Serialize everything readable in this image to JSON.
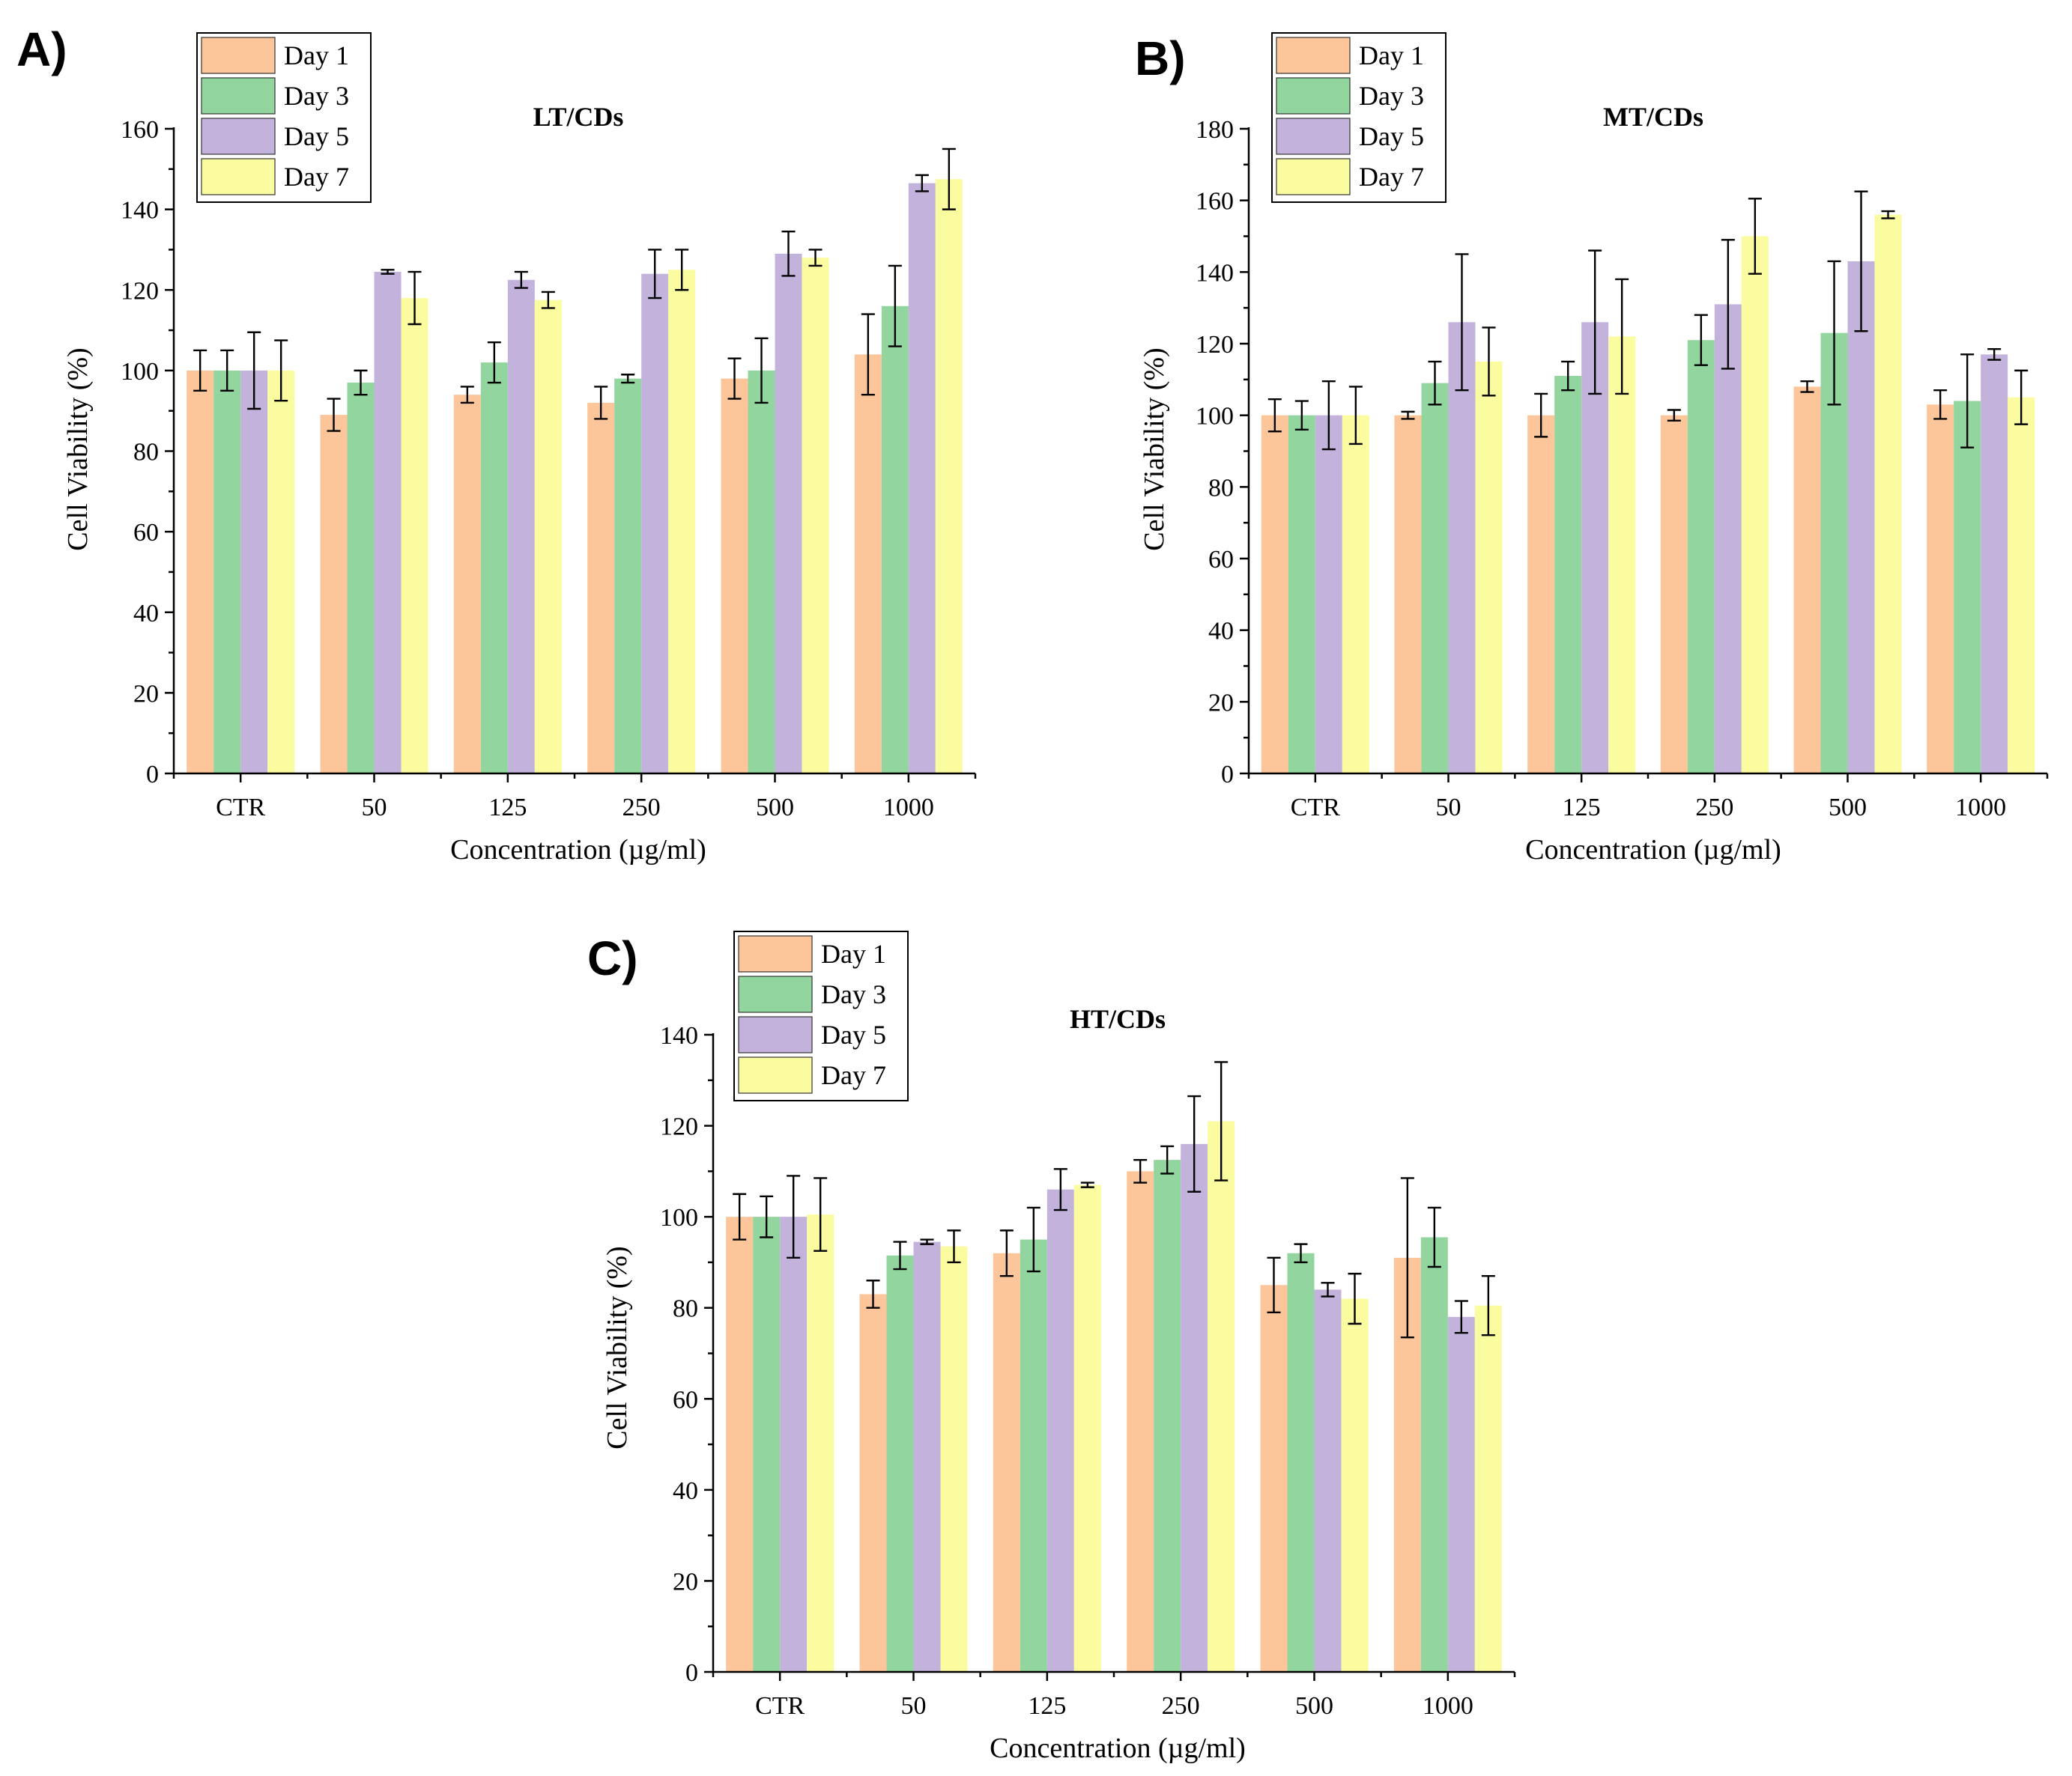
{
  "colors": {
    "Day 1": "#fcc69a",
    "Day 3": "#93d59e",
    "Day 5": "#c3b3dc",
    "Day 7": "#fbfba0"
  },
  "chart_data": [
    {
      "panel": "A)",
      "type": "bar",
      "title": "LT/CDs",
      "xlabel": "Concentration (µg/ml)",
      "ylabel": "Cell Viability (%)",
      "ylim": [
        0,
        160
      ],
      "yticks": [
        0,
        20,
        40,
        60,
        80,
        100,
        120,
        140,
        160
      ],
      "categories": [
        "CTR",
        "50",
        "125",
        "250",
        "500",
        "1000"
      ],
      "legend_position": "top-left",
      "series": [
        {
          "name": "Day 1",
          "values": [
            100,
            89,
            94,
            92,
            98,
            104
          ],
          "errors": [
            5,
            4,
            2,
            4,
            5,
            10
          ]
        },
        {
          "name": "Day 3",
          "values": [
            100,
            97,
            102,
            98,
            100,
            116
          ],
          "errors": [
            5,
            3,
            5,
            1,
            8,
            10
          ]
        },
        {
          "name": "Day 5",
          "values": [
            100,
            124.5,
            122.5,
            124,
            129,
            146.5
          ],
          "errors": [
            9.5,
            0.5,
            2,
            6,
            5.5,
            2
          ]
        },
        {
          "name": "Day 7",
          "values": [
            100,
            118,
            117.5,
            125,
            128,
            147.5
          ],
          "errors": [
            7.5,
            6.5,
            2,
            5,
            2,
            7.5
          ]
        }
      ]
    },
    {
      "panel": "B)",
      "type": "bar",
      "title": "MT/CDs",
      "xlabel": "Concentration (µg/ml)",
      "ylabel": "Cell Viability (%)",
      "ylim": [
        0,
        180
      ],
      "yticks": [
        0,
        20,
        40,
        60,
        80,
        100,
        120,
        140,
        160,
        180
      ],
      "categories": [
        "CTR",
        "50",
        "125",
        "250",
        "500",
        "1000"
      ],
      "legend_position": "top-left",
      "series": [
        {
          "name": "Day 1",
          "values": [
            100,
            100,
            100,
            100,
            108,
            103
          ],
          "errors": [
            4.5,
            1,
            6,
            1.5,
            1.5,
            4
          ]
        },
        {
          "name": "Day 3",
          "values": [
            100,
            109,
            111,
            121,
            123,
            104
          ],
          "errors": [
            4,
            6,
            4,
            7,
            20,
            13
          ]
        },
        {
          "name": "Day 5",
          "values": [
            100,
            126,
            126,
            131,
            143,
            117
          ],
          "errors": [
            9.5,
            19,
            20,
            18,
            19.5,
            1.5
          ]
        },
        {
          "name": "Day 7",
          "values": [
            100,
            115,
            122,
            150,
            156,
            105
          ],
          "errors": [
            8,
            9.5,
            16,
            10.5,
            1,
            7.5
          ]
        }
      ]
    },
    {
      "panel": "C)",
      "type": "bar",
      "title": "HT/CDs",
      "xlabel": "Concentration (µg/ml)",
      "ylabel": "Cell Viability (%)",
      "ylim": [
        0,
        140
      ],
      "yticks": [
        0,
        20,
        40,
        60,
        80,
        100,
        120,
        140
      ],
      "categories": [
        "CTR",
        "50",
        "125",
        "250",
        "500",
        "1000"
      ],
      "legend_position": "top-left",
      "series": [
        {
          "name": "Day 1",
          "values": [
            100,
            83,
            92,
            110,
            85,
            91
          ],
          "errors": [
            5,
            3,
            5,
            2.5,
            6,
            17.5
          ]
        },
        {
          "name": "Day 3",
          "values": [
            100,
            91.5,
            95,
            112.5,
            92,
            95.5
          ],
          "errors": [
            4.5,
            3,
            7,
            3,
            2,
            6.5
          ]
        },
        {
          "name": "Day 5",
          "values": [
            100,
            94.5,
            106,
            116,
            84,
            78
          ],
          "errors": [
            9,
            0.5,
            4.5,
            10.5,
            1.5,
            3.5
          ]
        },
        {
          "name": "Day 7",
          "values": [
            100.5,
            93.5,
            107,
            121,
            82,
            80.5
          ],
          "errors": [
            8,
            3.5,
            0.5,
            13,
            5.5,
            6.5
          ]
        }
      ]
    }
  ]
}
